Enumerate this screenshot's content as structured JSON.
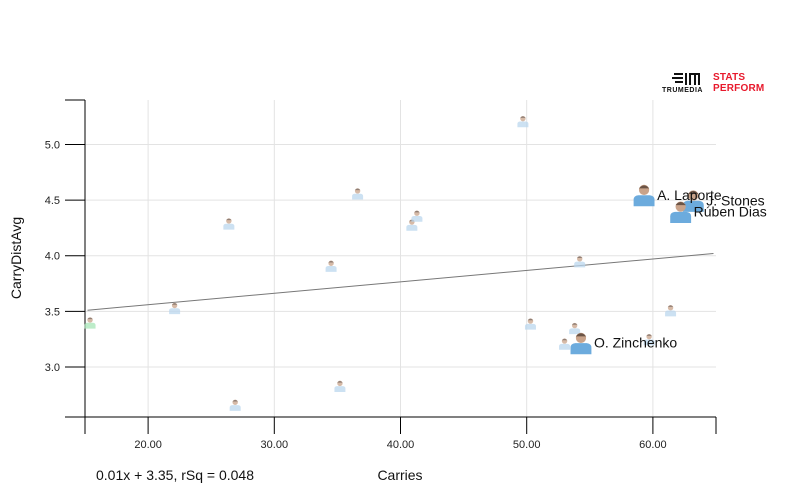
{
  "branding": {
    "trumedia": "TRUMEDIA",
    "stats_line1": "STATS",
    "stats_line2": "PERFORM",
    "accent": "#e8192c"
  },
  "chart_data": {
    "type": "scatter",
    "title": "",
    "xlabel": "Carries",
    "ylabel": "CarryDistAvg",
    "xlim": [
      15,
      65
    ],
    "ylim": [
      2.55,
      5.4
    ],
    "xticks": [
      20,
      30,
      40,
      50,
      60
    ],
    "xtick_labels": [
      "20.00",
      "30.00",
      "40.00",
      "50.00",
      "60.00"
    ],
    "yticks": [
      3.0,
      3.5,
      4.0,
      4.5,
      5.0
    ],
    "ytick_labels": [
      "3.0",
      "3.5",
      "4.0",
      "4.5",
      "5.0"
    ],
    "grid": true,
    "regression": {
      "slope": 0.01,
      "intercept": 3.35,
      "label": "0.01x + 3.35, rSq = 0.048",
      "line_start": [
        15.2,
        3.51
      ],
      "line_end": [
        64.8,
        4.02
      ]
    },
    "points": [
      {
        "x": 15.4,
        "y": 3.39,
        "label": "",
        "highlight": false,
        "kit": "#a8e6b8"
      },
      {
        "x": 22.1,
        "y": 3.52,
        "label": "",
        "highlight": false,
        "kit": "#bcd7ee"
      },
      {
        "x": 26.4,
        "y": 4.28,
        "label": "",
        "highlight": false,
        "kit": "#bcd7ee"
      },
      {
        "x": 26.9,
        "y": 2.65,
        "label": "",
        "highlight": false,
        "kit": "#bcd7ee"
      },
      {
        "x": 34.5,
        "y": 3.9,
        "label": "",
        "highlight": false,
        "kit": "#bcd7ee"
      },
      {
        "x": 35.2,
        "y": 2.82,
        "label": "",
        "highlight": false,
        "kit": "#bcd7ee"
      },
      {
        "x": 36.6,
        "y": 4.55,
        "label": "",
        "highlight": false,
        "kit": "#bcd7ee"
      },
      {
        "x": 40.9,
        "y": 4.27,
        "label": "",
        "highlight": false,
        "kit": "#bcd7ee"
      },
      {
        "x": 41.3,
        "y": 4.35,
        "label": "",
        "highlight": false,
        "kit": "#bcd7ee"
      },
      {
        "x": 49.7,
        "y": 5.2,
        "label": "",
        "highlight": false,
        "kit": "#bcd7ee"
      },
      {
        "x": 50.3,
        "y": 3.38,
        "label": "",
        "highlight": false,
        "kit": "#bcd7ee"
      },
      {
        "x": 53.0,
        "y": 3.2,
        "label": "",
        "highlight": false,
        "kit": "#bcd7ee"
      },
      {
        "x": 53.8,
        "y": 3.34,
        "label": "",
        "highlight": false,
        "kit": "#bcd7ee"
      },
      {
        "x": 54.2,
        "y": 3.94,
        "label": "",
        "highlight": false,
        "kit": "#bcd7ee"
      },
      {
        "x": 59.7,
        "y": 3.24,
        "label": "",
        "highlight": false,
        "kit": "#bcd7ee"
      },
      {
        "x": 61.4,
        "y": 3.5,
        "label": "",
        "highlight": false,
        "kit": "#bcd7ee"
      },
      {
        "x": 54.3,
        "y": 3.2,
        "label": "O. Zinchenko",
        "highlight": true,
        "kit": "#6cabdd"
      },
      {
        "x": 59.3,
        "y": 4.53,
        "label": "A. Laporte",
        "highlight": true,
        "kit": "#6cabdd"
      },
      {
        "x": 63.2,
        "y": 4.48,
        "label": "J. Stones",
        "highlight": true,
        "kit": "#6cabdd"
      },
      {
        "x": 62.2,
        "y": 4.38,
        "label": "Rúben Dias",
        "highlight": true,
        "kit": "#6cabdd"
      }
    ]
  }
}
